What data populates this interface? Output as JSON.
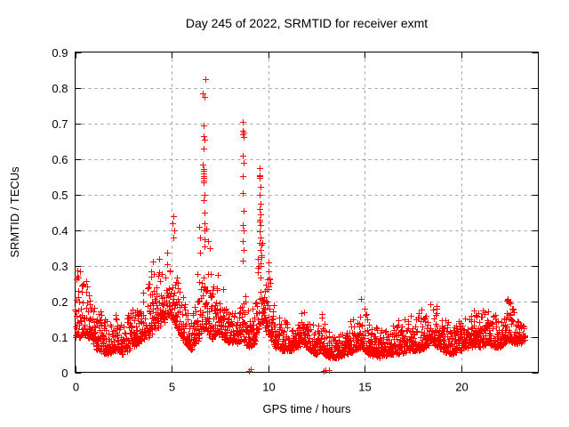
{
  "chart_data": {
    "type": "scatter",
    "title": "Day 245 of 2022, SRMTID for receiver exmt",
    "xlabel": "GPS time / hours",
    "ylabel": "SRMTID / TECUs",
    "xlim": [
      0,
      24
    ],
    "ylim": [
      0,
      0.9
    ],
    "xticks": [
      [
        0,
        "0"
      ],
      [
        5,
        "5"
      ],
      [
        10,
        "10"
      ],
      [
        15,
        "15"
      ],
      [
        20,
        "20"
      ]
    ],
    "yticks": [
      [
        0,
        "0"
      ],
      [
        0.1,
        "0.1"
      ],
      [
        0.2,
        "0.2"
      ],
      [
        0.3,
        "0.3"
      ],
      [
        0.4,
        "0.4"
      ],
      [
        0.5,
        "0.5"
      ],
      [
        0.6,
        "0.6"
      ],
      [
        0.7,
        "0.7"
      ],
      [
        0.8,
        "0.8"
      ],
      [
        0.9,
        "0.9"
      ]
    ],
    "grid": true,
    "legend": "none",
    "marker": "plus",
    "marker_color": "#ff0000",
    "grid_color": "#9e9e9e",
    "axis_color": "#000000",
    "x_start": 0.0,
    "x_end": 23.3,
    "sample_step": 0.01,
    "seed": 245,
    "band_envelope": [
      [
        0.0,
        0.09,
        0.3
      ],
      [
        0.3,
        0.1,
        0.31
      ],
      [
        0.6,
        0.1,
        0.27
      ],
      [
        0.95,
        0.07,
        0.2
      ],
      [
        1.25,
        0.06,
        0.19
      ],
      [
        1.7,
        0.05,
        0.16
      ],
      [
        2.1,
        0.06,
        0.17
      ],
      [
        2.5,
        0.05,
        0.16
      ],
      [
        3.0,
        0.07,
        0.18
      ],
      [
        3.5,
        0.09,
        0.24
      ],
      [
        3.9,
        0.1,
        0.3
      ],
      [
        4.2,
        0.12,
        0.33
      ],
      [
        4.6,
        0.14,
        0.3
      ],
      [
        5.0,
        0.15,
        0.4
      ],
      [
        5.25,
        0.13,
        0.32
      ],
      [
        5.6,
        0.09,
        0.22
      ],
      [
        6.0,
        0.06,
        0.16
      ],
      [
        6.35,
        0.08,
        0.28
      ],
      [
        6.6,
        0.12,
        0.46
      ],
      [
        6.75,
        0.12,
        0.44
      ],
      [
        7.0,
        0.1,
        0.36
      ],
      [
        7.25,
        0.09,
        0.28
      ],
      [
        7.55,
        0.1,
        0.27
      ],
      [
        8.0,
        0.08,
        0.2
      ],
      [
        8.45,
        0.08,
        0.18
      ],
      [
        8.7,
        0.09,
        0.3
      ],
      [
        9.0,
        0.07,
        0.18
      ],
      [
        9.3,
        0.08,
        0.2
      ],
      [
        9.55,
        0.13,
        0.5
      ],
      [
        9.75,
        0.13,
        0.33
      ],
      [
        10.05,
        0.1,
        0.31
      ],
      [
        10.35,
        0.07,
        0.17
      ],
      [
        10.8,
        0.06,
        0.15
      ],
      [
        11.3,
        0.06,
        0.14
      ],
      [
        11.75,
        0.08,
        0.21
      ],
      [
        12.1,
        0.06,
        0.15
      ],
      [
        12.45,
        0.05,
        0.13
      ],
      [
        12.75,
        0.06,
        0.17
      ],
      [
        13.1,
        0.04,
        0.12
      ],
      [
        13.6,
        0.04,
        0.11
      ],
      [
        14.1,
        0.05,
        0.13
      ],
      [
        14.55,
        0.06,
        0.18
      ],
      [
        14.85,
        0.07,
        0.22
      ],
      [
        15.2,
        0.05,
        0.14
      ],
      [
        15.8,
        0.04,
        0.12
      ],
      [
        16.3,
        0.05,
        0.13
      ],
      [
        16.8,
        0.05,
        0.15
      ],
      [
        17.3,
        0.06,
        0.16
      ],
      [
        17.8,
        0.06,
        0.17
      ],
      [
        18.2,
        0.07,
        0.2
      ],
      [
        18.5,
        0.08,
        0.22
      ],
      [
        19.0,
        0.06,
        0.16
      ],
      [
        19.5,
        0.05,
        0.14
      ],
      [
        20.0,
        0.06,
        0.15
      ],
      [
        20.5,
        0.07,
        0.17
      ],
      [
        21.0,
        0.07,
        0.19
      ],
      [
        21.35,
        0.08,
        0.21
      ],
      [
        21.7,
        0.07,
        0.16
      ],
      [
        22.1,
        0.07,
        0.17
      ],
      [
        22.45,
        0.09,
        0.22
      ],
      [
        22.8,
        0.08,
        0.17
      ],
      [
        23.1,
        0.08,
        0.15
      ],
      [
        23.3,
        0.09,
        0.13
      ]
    ],
    "outlier_points": [
      [
        5.05,
        0.42
      ],
      [
        5.1,
        0.44
      ],
      [
        5.15,
        0.4
      ],
      [
        5.08,
        0.38
      ],
      [
        6.42,
        0.41
      ],
      [
        6.47,
        0.38
      ],
      [
        6.76,
        0.825
      ],
      [
        6.62,
        0.785
      ],
      [
        6.7,
        0.775
      ],
      [
        6.64,
        0.695
      ],
      [
        6.66,
        0.665
      ],
      [
        6.68,
        0.655
      ],
      [
        6.65,
        0.63
      ],
      [
        6.63,
        0.585
      ],
      [
        6.66,
        0.572
      ],
      [
        6.67,
        0.566
      ],
      [
        6.65,
        0.558
      ],
      [
        6.66,
        0.552
      ],
      [
        6.64,
        0.545
      ],
      [
        6.67,
        0.54
      ],
      [
        6.65,
        0.535
      ],
      [
        6.68,
        0.5
      ],
      [
        6.64,
        0.485
      ],
      [
        6.7,
        0.45
      ],
      [
        6.72,
        0.42
      ],
      [
        6.69,
        0.4
      ],
      [
        6.71,
        0.375
      ],
      [
        8.7,
        0.705
      ],
      [
        8.69,
        0.68
      ],
      [
        8.71,
        0.675
      ],
      [
        8.7,
        0.668
      ],
      [
        8.72,
        0.662
      ],
      [
        8.7,
        0.61
      ],
      [
        8.71,
        0.59
      ],
      [
        8.69,
        0.55
      ],
      [
        8.7,
        0.505
      ],
      [
        8.72,
        0.455
      ],
      [
        8.69,
        0.415
      ],
      [
        8.71,
        0.4
      ],
      [
        8.7,
        0.37
      ],
      [
        8.72,
        0.345
      ],
      [
        8.69,
        0.315
      ],
      [
        9.56,
        0.575
      ],
      [
        9.58,
        0.555
      ],
      [
        9.55,
        0.55
      ],
      [
        9.57,
        0.545
      ],
      [
        9.59,
        0.52
      ],
      [
        9.56,
        0.5
      ],
      [
        9.6,
        0.475
      ],
      [
        9.57,
        0.46
      ],
      [
        9.61,
        0.445
      ],
      [
        9.58,
        0.43
      ],
      [
        9.55,
        0.425
      ],
      [
        9.62,
        0.415
      ],
      [
        9.59,
        0.38
      ],
      [
        9.63,
        0.36
      ],
      [
        9.6,
        0.345
      ],
      [
        9.64,
        0.33
      ],
      [
        9.61,
        0.3
      ],
      [
        10.0,
        0.31
      ],
      [
        10.02,
        0.285
      ],
      [
        10.05,
        0.265
      ]
    ],
    "near_zero_points": [
      [
        9.02,
        0.004
      ],
      [
        9.08,
        0.008
      ],
      [
        12.86,
        0.004
      ],
      [
        12.95,
        0.007
      ],
      [
        13.13,
        0.006
      ]
    ]
  }
}
